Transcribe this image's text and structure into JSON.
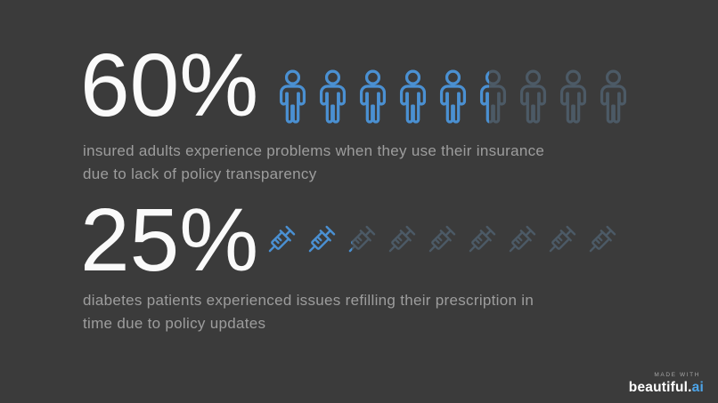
{
  "colors": {
    "background": "#3b3b3b",
    "accent": "#4a90d2",
    "muted": "#4c5a66",
    "number": "#fafafa",
    "description": "#9d9d9d",
    "brand_ai": "#4da4e8"
  },
  "stats": [
    {
      "value": "60%",
      "percent": 60,
      "icon": "person",
      "icon_count": 9,
      "description": "insured adults experience problems when they use their insurance\ndue to lack of policy transparency"
    },
    {
      "value": "25%",
      "percent": 25,
      "icon": "syringe",
      "icon_count": 9,
      "description": "diabetes patients experienced issues refilling their prescription in\ntime due to policy updates"
    }
  ],
  "footer": {
    "made_with": "MADE WITH",
    "brand": "beautiful.",
    "brand_suffix": "ai"
  },
  "chart_data": [
    {
      "type": "pictogram",
      "value_percent": 60,
      "icon": "person",
      "icon_total": 9,
      "filled_color": "#4a90d2",
      "unfilled_color": "#4c5a66",
      "label": "insured adults experience problems when they use their insurance due to lack of policy transparency"
    },
    {
      "type": "pictogram",
      "value_percent": 25,
      "icon": "syringe",
      "icon_total": 9,
      "filled_color": "#4a90d2",
      "unfilled_color": "#4c5a66",
      "label": "diabetes patients experienced issues refilling their prescription in time due to policy updates"
    }
  ]
}
